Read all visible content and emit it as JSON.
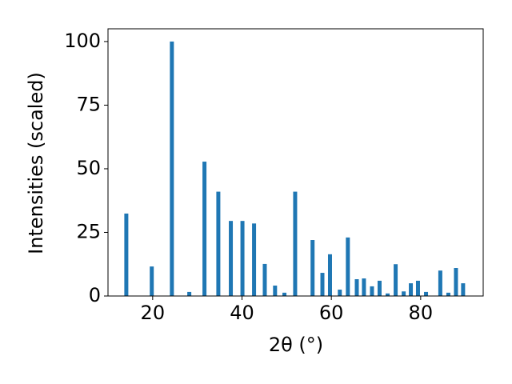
{
  "chart_data": {
    "type": "bar",
    "x_label": "2θ (°)",
    "y_label": "Intensities (scaled)",
    "x": [
      14.1,
      19.8,
      24.3,
      28.2,
      31.6,
      34.7,
      37.5,
      40.1,
      42.7,
      45.1,
      47.4,
      49.5,
      51.9,
      55.8,
      58.0,
      59.7,
      61.9,
      63.7,
      65.7,
      67.3,
      69.1,
      70.8,
      72.6,
      74.4,
      76.2,
      77.8,
      79.4,
      81.2,
      84.4,
      86.2,
      87.9,
      89.5
    ],
    "values": [
      32.4,
      11.6,
      100,
      1.6,
      52.8,
      41,
      29.5,
      29.5,
      28.5,
      12.6,
      4.1,
      1.3,
      41,
      22,
      9.1,
      16.4,
      2.5,
      23,
      6.6,
      6.9,
      3.8,
      6,
      1,
      12.5,
      1.8,
      5,
      6,
      1.6,
      10,
      1.3,
      11,
      5
    ],
    "color": "#1f77b4",
    "xlim": [
      10,
      94
    ],
    "xticks": [
      20,
      40,
      60,
      80
    ],
    "ylim": [
      0,
      105
    ],
    "yticks": [
      0,
      25,
      50,
      75,
      100
    ],
    "grid": false
  }
}
